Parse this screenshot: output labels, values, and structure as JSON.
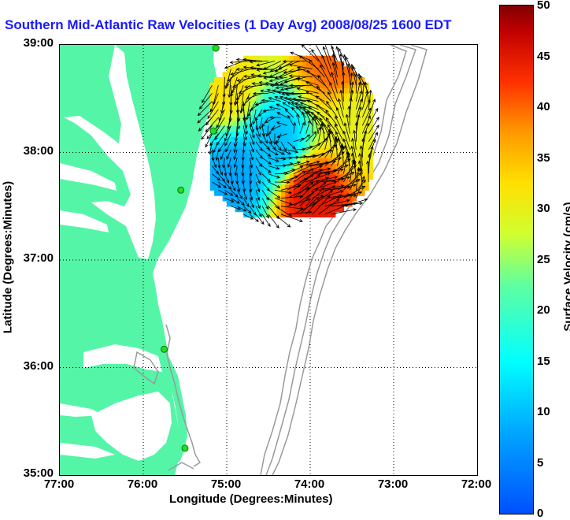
{
  "title": "Southern Mid-Atlantic Raw Velocities (1 Day Avg) 2008/08/25 1600 EDT",
  "xlabel": "Longitude (Degrees:Minutes)",
  "ylabel": "Latitude (Degrees:Minutes)",
  "colorbar": {
    "label": "Surface Velocity (cm/s)",
    "min": 0,
    "max": 50,
    "ticks": [
      "0",
      "5",
      "10",
      "15",
      "20",
      "25",
      "30",
      "35",
      "40",
      "45",
      "50"
    ]
  },
  "x_ticks": [
    "77:00",
    "76:00",
    "75:00",
    "74:00",
    "73:00",
    "72:00"
  ],
  "y_ticks": [
    "39:00",
    "38:00",
    "37:00",
    "36:00",
    "35:00"
  ],
  "map_extent": {
    "lon": [
      -77,
      -72
    ],
    "lat": [
      35,
      39
    ]
  },
  "colors": {
    "land": "#55f5a8",
    "title": "#1a1aff",
    "bathymetry": "#9a9a9a",
    "station": "#22dd22"
  },
  "stations": [
    {
      "lon": -75.13,
      "lat": 38.97
    },
    {
      "lon": -75.16,
      "lat": 38.2
    },
    {
      "lon": -75.55,
      "lat": 37.65
    },
    {
      "lon": -75.75,
      "lat": 36.17
    },
    {
      "lon": -75.5,
      "lat": 35.25
    }
  ],
  "chart_data": {
    "type": "heatmap",
    "title": "Southern Mid-Atlantic Raw Velocities (1 Day Avg) 2008/08/25 1600 EDT",
    "xlabel": "Longitude (Degrees:Minutes)",
    "ylabel": "Latitude (Degrees:Minutes)",
    "xlim": [
      -77,
      -72
    ],
    "ylim": [
      35,
      39
    ],
    "colorbar_range": [
      0,
      50
    ],
    "units": "cm/s",
    "velocity_region": {
      "lon": [
        -75.2,
        -73.25
      ],
      "lat": [
        37.4,
        38.9
      ]
    },
    "approx_speed_zones": [
      {
        "lon": -74.0,
        "lat": 37.6,
        "speed": 45
      },
      {
        "lon": -73.7,
        "lat": 38.85,
        "speed": 40
      },
      {
        "lon": -75.0,
        "lat": 38.6,
        "speed": 32
      },
      {
        "lon": -73.45,
        "lat": 38.3,
        "speed": 30
      },
      {
        "lon": -74.4,
        "lat": 38.1,
        "speed": 10
      },
      {
        "lon": -74.9,
        "lat": 37.8,
        "speed": 8
      }
    ]
  }
}
